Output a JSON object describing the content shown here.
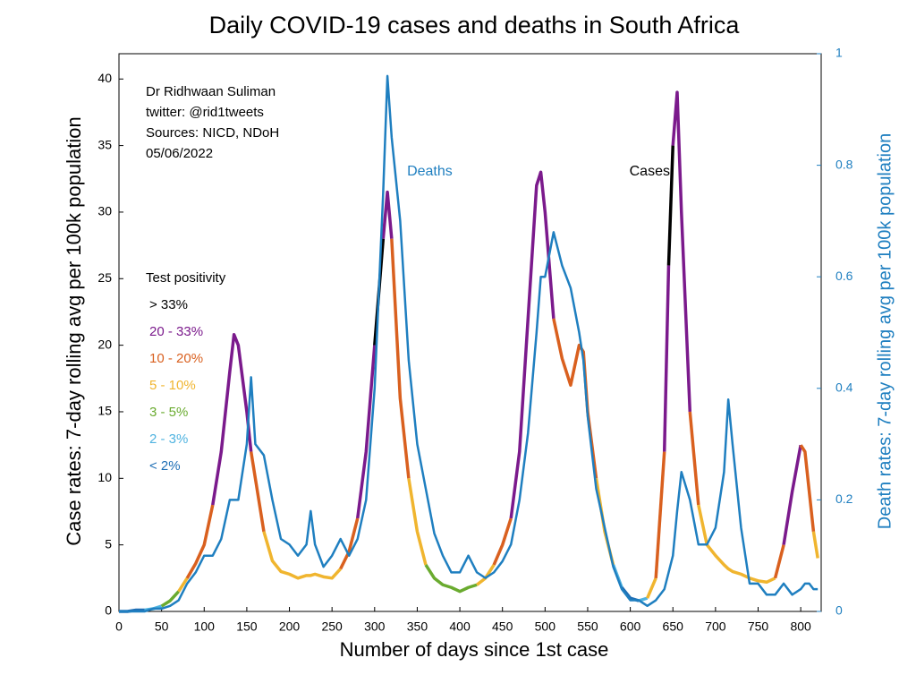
{
  "chart_data": {
    "type": "line",
    "title": "Daily COVID-19 cases and deaths in South Africa",
    "xlabel": "Number of days since 1st case",
    "ylabel": "Case rates: 7-day rolling avg per 100k population",
    "y2label": "Death rates: 7-day rolling avg per 100k population",
    "annotations": [
      "Dr Ridhwaan Suliman",
      "twitter: @rid1tweets",
      "Sources: NICD, NDoH",
      "05/06/2022"
    ],
    "legend_title": "Test positivity",
    "legend": [
      {
        "label": "> 33%",
        "color": "#000000"
      },
      {
        "label": "20 - 33%",
        "color": "#7b1a8c"
      },
      {
        "label": "10 - 20%",
        "color": "#d9601f"
      },
      {
        "label": "5 - 10%",
        "color": "#f0b52f"
      },
      {
        "label": "3 - 5%",
        "color": "#6aab2f"
      },
      {
        "label": "2 - 3%",
        "color": "#4fb3e0"
      },
      {
        "label": "< 2%",
        "color": "#1f6fb5"
      }
    ],
    "xlim": [
      0,
      824
    ],
    "xticks": [
      0,
      50,
      100,
      150,
      200,
      250,
      300,
      350,
      400,
      450,
      500,
      550,
      600,
      650,
      700,
      750,
      800
    ],
    "ylim": [
      0,
      41.9
    ],
    "yticks": [
      0,
      5,
      10,
      15,
      20,
      25,
      30,
      35,
      40
    ],
    "y2lim": [
      0,
      1
    ],
    "y2ticks": [
      0,
      0.2,
      0.4,
      0.6,
      0.8,
      1
    ],
    "y2color": "#1f7fc0",
    "x": [
      0,
      10,
      20,
      30,
      40,
      50,
      60,
      70,
      80,
      90,
      100,
      110,
      120,
      130,
      135,
      140,
      150,
      155,
      160,
      170,
      180,
      190,
      200,
      210,
      220,
      225,
      230,
      240,
      250,
      260,
      270,
      280,
      290,
      300,
      310,
      315,
      320,
      330,
      340,
      350,
      360,
      370,
      380,
      390,
      400,
      410,
      420,
      430,
      440,
      450,
      460,
      470,
      480,
      490,
      495,
      500,
      510,
      520,
      530,
      540,
      545,
      550,
      560,
      570,
      580,
      590,
      600,
      610,
      620,
      630,
      640,
      645,
      650,
      655,
      660,
      670,
      680,
      690,
      700,
      710,
      715,
      720,
      730,
      740,
      750,
      760,
      770,
      780,
      790,
      800,
      805,
      810,
      815,
      820
    ],
    "series": [
      {
        "name": "Cases",
        "color": "#000000",
        "values": [
          0,
          0,
          0.1,
          0.1,
          0.2,
          0.4,
          0.8,
          1.5,
          2.5,
          3.6,
          5,
          8,
          12,
          18,
          20.8,
          20,
          15,
          12,
          10,
          6,
          3.8,
          3,
          2.8,
          2.5,
          2.7,
          2.7,
          2.8,
          2.6,
          2.5,
          3.2,
          4.5,
          7,
          12,
          20,
          28,
          31.5,
          28,
          16,
          10,
          6,
          3.5,
          2.5,
          2,
          1.8,
          1.5,
          1.8,
          2,
          2.5,
          3.5,
          5,
          7,
          12,
          22,
          32,
          33,
          30,
          22,
          19,
          17,
          20,
          19.5,
          15,
          10,
          6,
          3.5,
          1.8,
          1,
          0.8,
          1,
          2.5,
          12,
          26,
          35,
          39,
          30,
          15,
          8,
          5,
          4.2,
          3.5,
          3.2,
          3,
          2.8,
          2.5,
          2.3,
          2.2,
          2.5,
          5,
          9,
          12.5,
          12,
          9,
          6,
          4
        ],
        "colors": [
          "#1f6fb5",
          "#1f6fb5",
          "#1f6fb5",
          "#1f6fb5",
          "#4fb3e0",
          "#4fb3e0",
          "#6aab2f",
          "#6aab2f",
          "#f0b52f",
          "#d9601f",
          "#d9601f",
          "#d9601f",
          "#7b1a8c",
          "#7b1a8c",
          "#7b1a8c",
          "#7b1a8c",
          "#7b1a8c",
          "#7b1a8c",
          "#d9601f",
          "#d9601f",
          "#f0b52f",
          "#f0b52f",
          "#f0b52f",
          "#f0b52f",
          "#f0b52f",
          "#f0b52f",
          "#f0b52f",
          "#f0b52f",
          "#f0b52f",
          "#f0b52f",
          "#d9601f",
          "#d9601f",
          "#7b1a8c",
          "#7b1a8c",
          "#000000",
          "#7b1a8c",
          "#7b1a8c",
          "#d9601f",
          "#d9601f",
          "#f0b52f",
          "#f0b52f",
          "#6aab2f",
          "#6aab2f",
          "#6aab2f",
          "#6aab2f",
          "#6aab2f",
          "#6aab2f",
          "#f0b52f",
          "#f0b52f",
          "#d9601f",
          "#d9601f",
          "#7b1a8c",
          "#7b1a8c",
          "#7b1a8c",
          "#7b1a8c",
          "#7b1a8c",
          "#7b1a8c",
          "#d9601f",
          "#d9601f",
          "#d9601f",
          "#d9601f",
          "#d9601f",
          "#d9601f",
          "#f0b52f",
          "#f0b52f",
          "#4fb3e0",
          "#1f6fb5",
          "#1f6fb5",
          "#4fb3e0",
          "#f0b52f",
          "#d9601f",
          "#7b1a8c",
          "#000000",
          "#7b1a8c",
          "#7b1a8c",
          "#7b1a8c",
          "#d9601f",
          "#f0b52f",
          "#f0b52f",
          "#f0b52f",
          "#f0b52f",
          "#f0b52f",
          "#f0b52f",
          "#f0b52f",
          "#f0b52f",
          "#f0b52f",
          "#f0b52f",
          "#d9601f",
          "#7b1a8c",
          "#7b1a8c",
          "#d9601f",
          "#d9601f",
          "#d9601f",
          "#f0b52f"
        ]
      },
      {
        "name": "Deaths",
        "color": "#1f7fc0",
        "axis": "y2",
        "values": [
          0,
          0,
          0,
          0,
          0.005,
          0.005,
          0.01,
          0.02,
          0.05,
          0.07,
          0.1,
          0.1,
          0.13,
          0.2,
          0.2,
          0.2,
          0.3,
          0.42,
          0.3,
          0.28,
          0.2,
          0.13,
          0.12,
          0.1,
          0.12,
          0.18,
          0.12,
          0.08,
          0.1,
          0.13,
          0.1,
          0.13,
          0.2,
          0.4,
          0.75,
          0.96,
          0.85,
          0.7,
          0.45,
          0.3,
          0.22,
          0.14,
          0.1,
          0.07,
          0.07,
          0.1,
          0.07,
          0.06,
          0.07,
          0.09,
          0.12,
          0.2,
          0.32,
          0.5,
          0.6,
          0.6,
          0.68,
          0.62,
          0.58,
          0.5,
          0.45,
          0.35,
          0.22,
          0.15,
          0.08,
          0.04,
          0.02,
          0.02,
          0.01,
          0.02,
          0.04,
          0.07,
          0.1,
          0.18,
          0.25,
          0.2,
          0.12,
          0.12,
          0.15,
          0.25,
          0.38,
          0.3,
          0.15,
          0.05,
          0.05,
          0.03,
          0.03,
          0.05,
          0.03,
          0.04,
          0.05,
          0.05,
          0.04,
          0.04
        ]
      }
    ]
  }
}
